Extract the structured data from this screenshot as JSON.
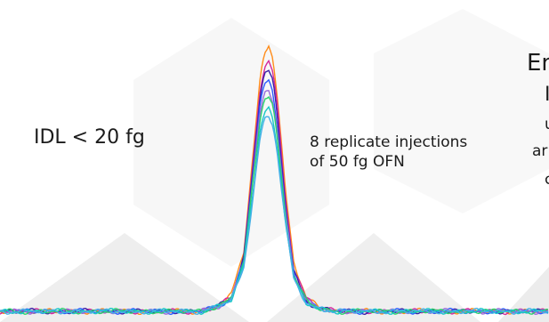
{
  "chart_data": {
    "type": "line",
    "title": "",
    "xlabel": "",
    "ylabel": "",
    "grid": false,
    "legend": "none",
    "x": [
      -1.0,
      -0.8,
      -0.6,
      -0.45,
      -0.3,
      -0.2,
      -0.1,
      -0.05,
      0.0,
      0.05,
      0.1,
      0.2,
      0.3,
      0.45,
      0.6,
      0.8,
      1.0
    ],
    "series": [
      {
        "color": "#ff8c1a",
        "values": [
          0,
          0,
          0.02,
          0.06,
          0.22,
          0.55,
          0.88,
          0.97,
          1.0,
          0.95,
          0.82,
          0.45,
          0.18,
          0.05,
          0.02,
          0,
          0
        ]
      },
      {
        "color": "#d42a9a",
        "values": [
          0,
          0,
          0.02,
          0.05,
          0.2,
          0.52,
          0.84,
          0.92,
          0.94,
          0.9,
          0.78,
          0.42,
          0.16,
          0.05,
          0.02,
          0,
          0
        ]
      },
      {
        "color": "#3b1fa8",
        "values": [
          0,
          0,
          0.02,
          0.05,
          0.2,
          0.5,
          0.82,
          0.89,
          0.9,
          0.86,
          0.74,
          0.4,
          0.15,
          0.04,
          0.01,
          0,
          0
        ]
      },
      {
        "color": "#2a5cff",
        "values": [
          0,
          0,
          0.02,
          0.05,
          0.19,
          0.48,
          0.78,
          0.85,
          0.86,
          0.82,
          0.7,
          0.38,
          0.14,
          0.04,
          0.01,
          0,
          0
        ]
      },
      {
        "color": "#9a6bd8",
        "values": [
          0,
          0,
          0.02,
          0.05,
          0.18,
          0.46,
          0.75,
          0.82,
          0.83,
          0.79,
          0.68,
          0.37,
          0.14,
          0.04,
          0.01,
          0,
          0
        ]
      },
      {
        "color": "#2bd16b",
        "values": [
          0,
          0,
          0.02,
          0.05,
          0.18,
          0.45,
          0.73,
          0.8,
          0.81,
          0.77,
          0.66,
          0.36,
          0.13,
          0.04,
          0.01,
          0,
          0
        ]
      },
      {
        "color": "#19c7c7",
        "values": [
          0,
          0,
          0.02,
          0.04,
          0.17,
          0.42,
          0.69,
          0.75,
          0.76,
          0.72,
          0.62,
          0.34,
          0.12,
          0.03,
          0.01,
          0,
          0
        ]
      },
      {
        "color": "#45b0e6",
        "values": [
          0,
          0,
          0.02,
          0.04,
          0.16,
          0.4,
          0.66,
          0.72,
          0.73,
          0.7,
          0.6,
          0.33,
          0.12,
          0.03,
          0.01,
          0,
          0
        ]
      }
    ],
    "annotations": [
      {
        "text": "IDL < 20 fg"
      },
      {
        "text": "8 replicate injections"
      },
      {
        "text": "of 50 fg OFN"
      }
    ]
  },
  "edge_text": [
    "En",
    "I",
    "u",
    "ar",
    "c"
  ]
}
